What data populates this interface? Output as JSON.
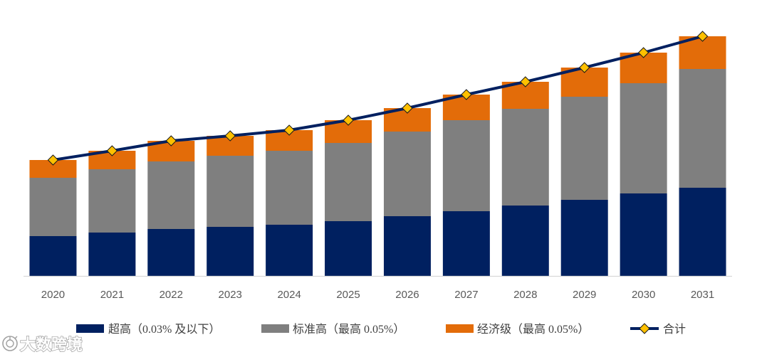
{
  "watermark": {
    "text": "大数跨境",
    "icon": "dashu-logo-icon"
  },
  "colors": {
    "axis": "#D9D9D9",
    "tick_text": "#595959",
    "legend_text": "#404040"
  },
  "chart_data": {
    "type": "bar",
    "stacked": true,
    "title": "",
    "xlabel": "",
    "ylabel": "",
    "y_axis_shown": false,
    "grid": false,
    "legend": "bottom",
    "ylim": [
      0,
      35
    ],
    "categories": [
      "2020",
      "2021",
      "2022",
      "2023",
      "2024",
      "2025",
      "2026",
      "2027",
      "2028",
      "2029",
      "2030",
      "2031"
    ],
    "series": [
      {
        "name": "超高（0.03% 及以下）",
        "color": "#002060",
        "values": [
          5.6,
          6.1,
          6.6,
          6.9,
          7.2,
          7.7,
          8.4,
          9.1,
          9.9,
          10.7,
          11.6,
          12.4
        ]
      },
      {
        "name": "标准高（最高 0.05%）",
        "color": "#7F7F7F",
        "values": [
          8.2,
          8.9,
          9.5,
          10.0,
          10.4,
          11.0,
          11.9,
          12.8,
          13.6,
          14.5,
          15.5,
          16.7
        ]
      },
      {
        "name": "经济级（最高 0.05%）",
        "color": "#E36C09",
        "values": [
          2.5,
          2.6,
          2.9,
          2.8,
          2.9,
          3.2,
          3.3,
          3.6,
          3.8,
          4.1,
          4.3,
          4.6
        ]
      }
    ],
    "total": {
      "name": "合计",
      "type": "line",
      "marker": "diamond",
      "color": "#002060",
      "marker_color": "#FFC000",
      "values": [
        16.3,
        17.6,
        19.0,
        19.7,
        20.5,
        21.9,
        23.6,
        25.5,
        27.3,
        29.3,
        31.4,
        33.7
      ]
    }
  }
}
